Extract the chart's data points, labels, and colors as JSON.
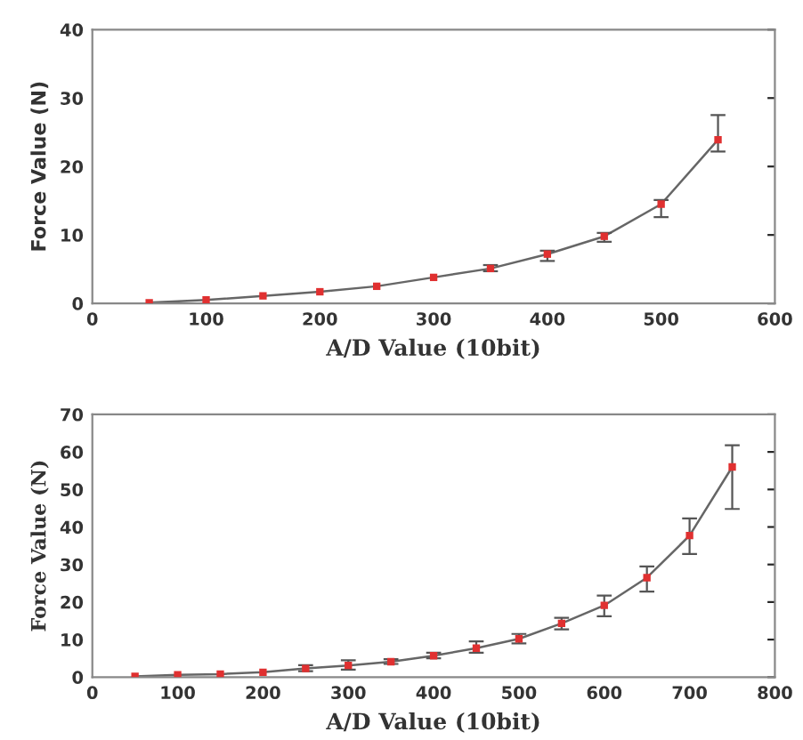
{
  "chart_data": [
    {
      "type": "line",
      "xlabel": "A/D Value (10bit)",
      "ylabel": "Force Value (N)",
      "x": [
        50,
        100,
        150,
        200,
        250,
        300,
        350,
        400,
        450,
        500,
        550
      ],
      "xlim": [
        0,
        600
      ],
      "xticks": [
        0,
        100,
        200,
        300,
        400,
        500,
        600
      ],
      "ylim": [
        0,
        40
      ],
      "yticks": [
        0,
        10,
        20,
        30,
        40
      ],
      "grid": false,
      "marker": "square",
      "series": [
        {
          "color": "#e03030",
          "values": [
            0.1,
            0.5,
            1.1,
            1.7,
            2.5,
            3.8,
            5.1,
            7.2,
            9.8,
            14.5,
            23.9
          ],
          "errors": [
            null,
            null,
            null,
            null,
            null,
            null,
            [
              4.7,
              5.6
            ],
            [
              6.2,
              7.7
            ],
            [
              9.0,
              10.3
            ],
            [
              12.6,
              15.1
            ],
            [
              22.2,
              27.5
            ]
          ]
        }
      ]
    },
    {
      "type": "line",
      "xlabel": "A/D Value (10bit)",
      "ylabel": "Force Value (N)",
      "x": [
        50,
        100,
        150,
        200,
        250,
        300,
        350,
        400,
        450,
        500,
        550,
        600,
        650,
        700,
        750
      ],
      "xlim": [
        0,
        800
      ],
      "xticks": [
        0,
        100,
        200,
        300,
        400,
        500,
        600,
        700,
        800
      ],
      "ylim": [
        0,
        70
      ],
      "yticks": [
        0,
        10,
        20,
        30,
        40,
        50,
        60,
        70
      ],
      "grid": false,
      "marker": "square",
      "series": [
        {
          "color": "#e03030",
          "values": [
            0.2,
            0.6,
            0.8,
            1.3,
            2.3,
            3.1,
            4.1,
            5.7,
            7.7,
            10.2,
            14.3,
            19.1,
            26.5,
            37.7,
            56
          ],
          "errors": [
            null,
            null,
            null,
            null,
            [
              1.6,
              3.2
            ],
            [
              2.0,
              4.5
            ],
            [
              3.5,
              4.8
            ],
            [
              5.0,
              6.5
            ],
            [
              6.5,
              9.5
            ],
            [
              9.0,
              11.5
            ],
            [
              12.7,
              15.8
            ],
            [
              16.2,
              21.7
            ],
            [
              22.8,
              29.5
            ],
            [
              32.8,
              42.3
            ],
            [
              44.8,
              61.8
            ]
          ]
        }
      ]
    }
  ]
}
